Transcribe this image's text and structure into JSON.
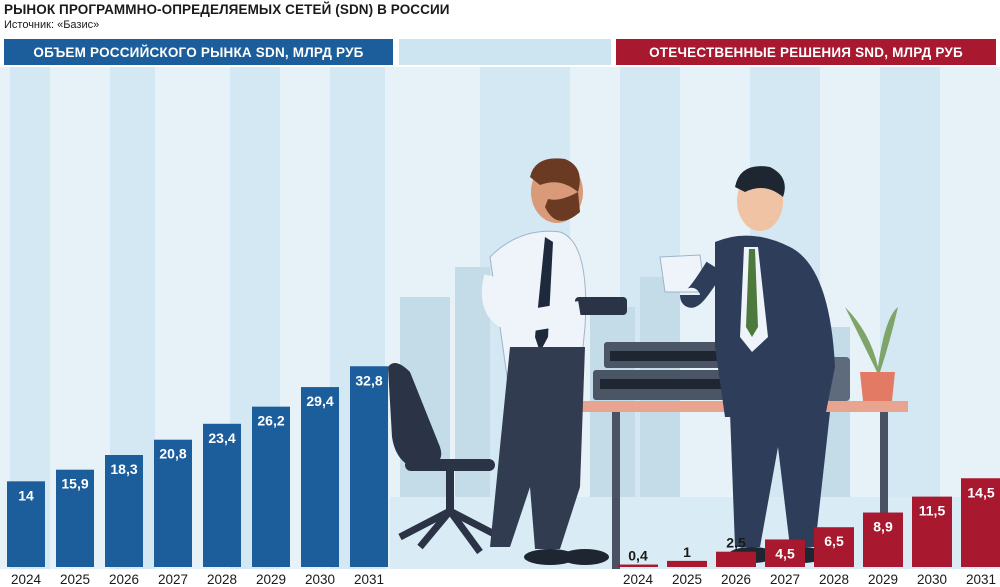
{
  "title": "РЫНОК ПРОГРАММНО-ОПРЕДЕЛЯЕМЫХ СЕТЕЙ (SDN) В РОССИИ",
  "source": "Источник: «Базис»",
  "colors": {
    "blue": "#1b5e9b",
    "red": "#a8182e",
    "sky": "#cde5f1"
  },
  "chart_data": [
    {
      "type": "bar",
      "title": "ОБЪЕМ РОССИЙСКОГО РЫНКА SDN, МЛРД РУБ",
      "categories": [
        "2024",
        "2025",
        "2026",
        "2027",
        "2028",
        "2029",
        "2030",
        "2031"
      ],
      "values": [
        14,
        15.9,
        18.3,
        20.8,
        23.4,
        26.2,
        29.4,
        32.8
      ],
      "value_labels": [
        "14",
        "15,9",
        "18,3",
        "20,8",
        "23,4",
        "26,2",
        "29,4",
        "32,8"
      ],
      "color": "#1b5e9b"
    },
    {
      "type": "bar",
      "title": "ОТЕЧЕСТВЕННЫЕ РЕШЕНИЯ SND, МЛРД РУБ",
      "categories": [
        "2024",
        "2025",
        "2026",
        "2027",
        "2028",
        "2029",
        "2030",
        "2031"
      ],
      "values": [
        0.4,
        1,
        2.5,
        4.5,
        6.5,
        8.9,
        11.5,
        14.5
      ],
      "value_labels": [
        "0,4",
        "1",
        "2,5",
        "4,5",
        "6,5",
        "8,9",
        "11,5",
        "14,5"
      ],
      "color": "#a8182e"
    }
  ]
}
